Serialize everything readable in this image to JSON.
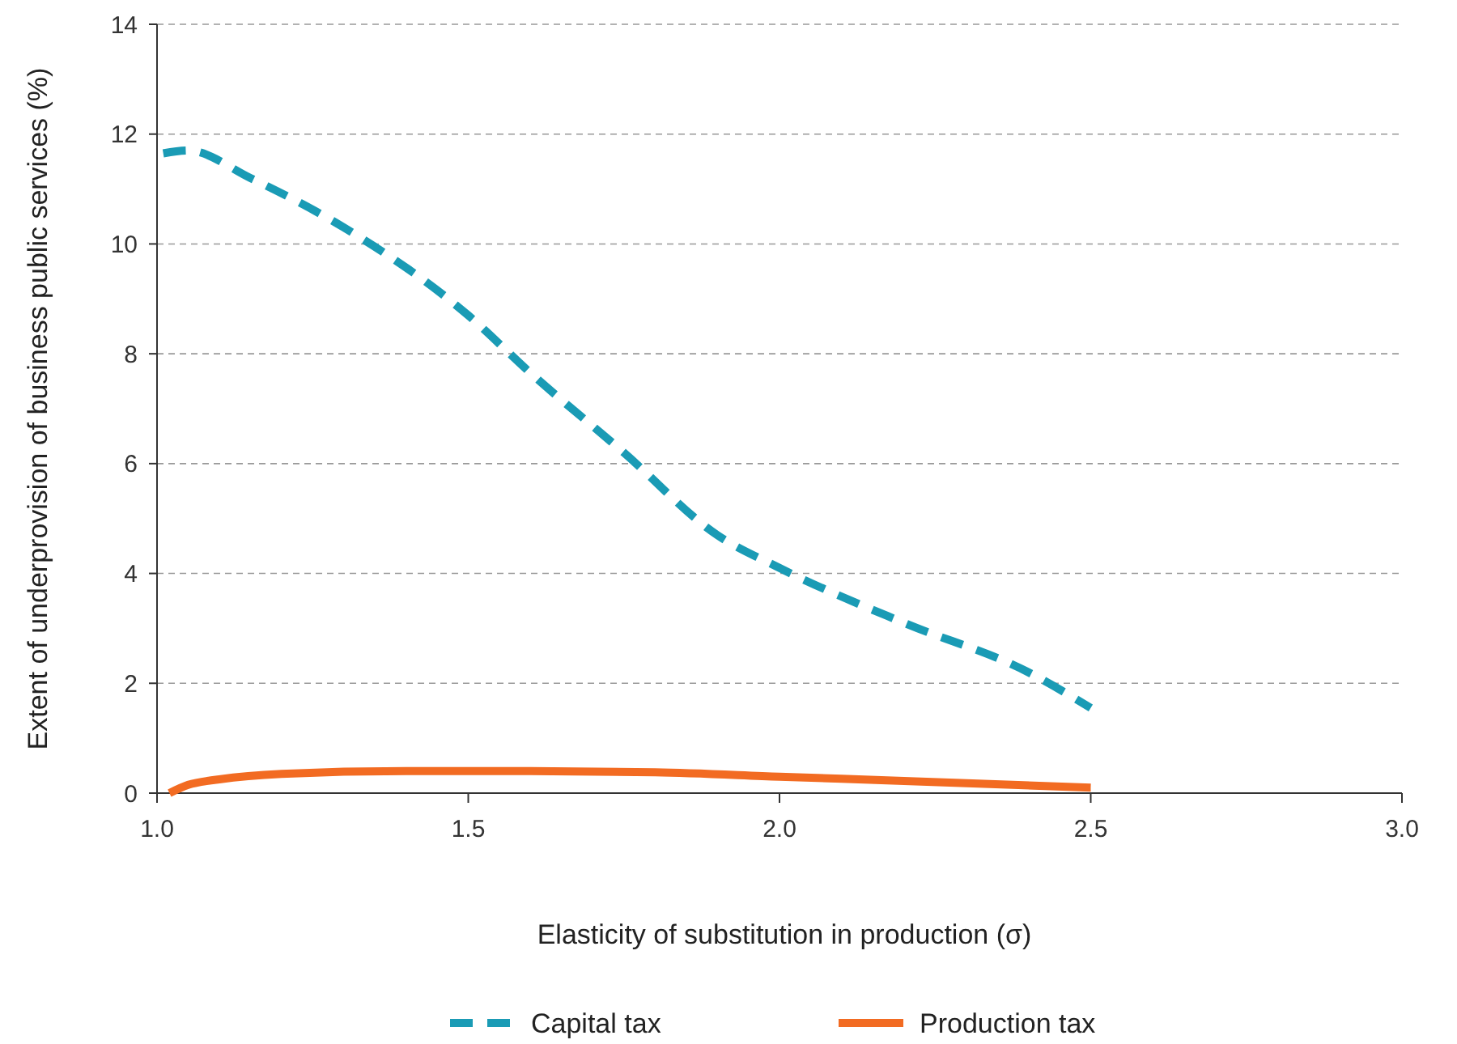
{
  "chart_data": {
    "type": "line",
    "xlabel": "Elasticity of substitution in production (σ)",
    "ylabel": "Extent of underprovision of business public services (%)",
    "xlim": [
      1.0,
      3.0
    ],
    "xticks": [
      {
        "value": 1,
        "label": "1.0"
      },
      1.5,
      {
        "value": 2,
        "label": "2.0"
      },
      2.5,
      {
        "value": 3,
        "label": "3.0"
      }
    ],
    "ylim": [
      0,
      14
    ],
    "yticks": [
      0,
      2,
      4,
      6,
      8,
      10,
      12,
      14
    ],
    "grid": "y",
    "legend": "bottom",
    "marker": "none",
    "series": [
      {
        "name": "Capital tax",
        "color": "#1a9bb5",
        "line_style": "dashed",
        "x": [
          1.01,
          1.05,
          1.15,
          1.3,
          1.5,
          1.6,
          1.75,
          1.9,
          2.0,
          2.2,
          2.4,
          2.5
        ],
        "values": [
          11.65,
          11.7,
          11.2,
          10.3,
          8.7,
          7.65,
          6.2,
          4.7,
          4.1,
          3.1,
          2.2,
          1.55
        ]
      },
      {
        "name": "Production tax",
        "color": "#f26b22",
        "line_style": "solid",
        "x": [
          1.02,
          1.05,
          1.1,
          1.2,
          1.4,
          1.6,
          1.8,
          2.0,
          2.2,
          2.5
        ],
        "values": [
          0,
          0.15,
          0.25,
          0.35,
          0.4,
          0.4,
          0.38,
          0.3,
          0.22,
          0.1
        ]
      }
    ]
  }
}
